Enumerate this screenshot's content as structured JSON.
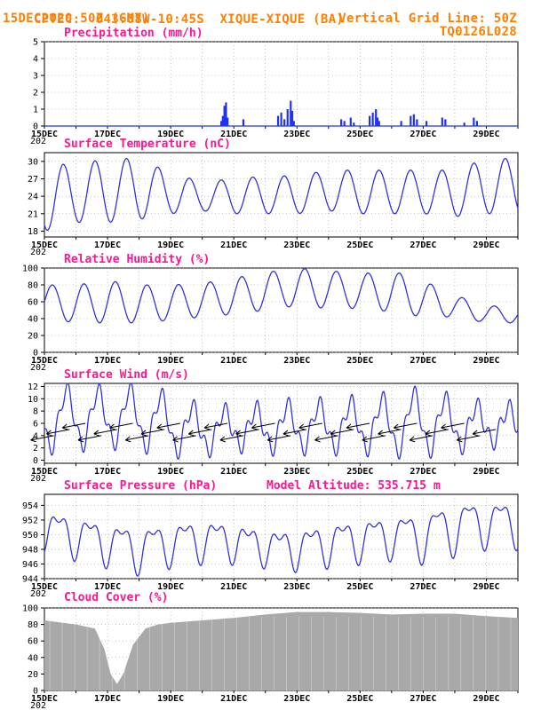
{
  "header": {
    "agency": "CPTEC:",
    "coords": "043:08W-10:45S",
    "station": "XIQUE-XIQUE (BA)",
    "date": "15DEC2020 50Z (GMT)",
    "grid_note": "Vertical Grid Line: 50Z",
    "code": "TQ0126L028"
  },
  "x_ticks": [
    "15DEC",
    "17DEC",
    "19DEC",
    "21DEC",
    "23DEC",
    "25DEC",
    "27DEC",
    "29DEC"
  ],
  "x_year_fragment": "202",
  "colors": {
    "header": "#ff8000",
    "title": "#ff1493",
    "line": "#3333dd",
    "bar": "#2233ee",
    "cloud": "#a9a9a9"
  },
  "chart_data": [
    {
      "type": "bar",
      "title": "Precipitation (mm/h)",
      "ylim": [
        0,
        5
      ],
      "yticks": [
        0,
        1,
        2,
        3,
        4,
        5
      ],
      "x_unit": "days since 15DEC 00Z",
      "values": [
        {
          "x": 5.6,
          "y": 0.3
        },
        {
          "x": 5.65,
          "y": 0.6
        },
        {
          "x": 5.7,
          "y": 1.2
        },
        {
          "x": 5.75,
          "y": 1.4
        },
        {
          "x": 5.8,
          "y": 0.5
        },
        {
          "x": 6.3,
          "y": 0.4
        },
        {
          "x": 7.4,
          "y": 0.6
        },
        {
          "x": 7.5,
          "y": 0.8
        },
        {
          "x": 7.6,
          "y": 0.4
        },
        {
          "x": 7.7,
          "y": 1.0
        },
        {
          "x": 7.8,
          "y": 1.5
        },
        {
          "x": 7.85,
          "y": 0.9
        },
        {
          "x": 7.9,
          "y": 0.3
        },
        {
          "x": 9.4,
          "y": 0.4
        },
        {
          "x": 9.5,
          "y": 0.3
        },
        {
          "x": 9.7,
          "y": 0.5
        },
        {
          "x": 9.8,
          "y": 0.2
        },
        {
          "x": 10.3,
          "y": 0.6
        },
        {
          "x": 10.4,
          "y": 0.8
        },
        {
          "x": 10.5,
          "y": 1.0
        },
        {
          "x": 10.55,
          "y": 0.5
        },
        {
          "x": 10.6,
          "y": 0.3
        },
        {
          "x": 11.3,
          "y": 0.3
        },
        {
          "x": 11.6,
          "y": 0.6
        },
        {
          "x": 11.7,
          "y": 0.7
        },
        {
          "x": 11.8,
          "y": 0.4
        },
        {
          "x": 12.1,
          "y": 0.3
        },
        {
          "x": 12.6,
          "y": 0.5
        },
        {
          "x": 12.7,
          "y": 0.4
        },
        {
          "x": 13.3,
          "y": 0.2
        },
        {
          "x": 13.6,
          "y": 0.5
        },
        {
          "x": 13.7,
          "y": 0.3
        }
      ]
    },
    {
      "type": "line",
      "title": "Surface Temperature (nC)",
      "ylim": [
        17,
        31.5
      ],
      "yticks": [
        18,
        21,
        24,
        27,
        30
      ],
      "daily_max": [
        29.5,
        29.5,
        30.5,
        30.5,
        28,
        26.5,
        27,
        27.5,
        27.5,
        28.5,
        28.5,
        28.5,
        28.5,
        28.5,
        30.5
      ],
      "daily_min": [
        18,
        19.5,
        19.5,
        20,
        21,
        21.5,
        21,
        21,
        21,
        21.5,
        21,
        21,
        21,
        20.5,
        21
      ]
    },
    {
      "type": "line",
      "title": "Relative Humidity (%)",
      "ylim": [
        0,
        100
      ],
      "yticks": [
        0,
        20,
        40,
        60,
        80,
        100
      ],
      "daily_max": [
        80,
        80,
        85,
        80,
        80,
        82,
        88,
        95,
        100,
        97,
        93,
        97,
        85,
        68,
        55
      ],
      "daily_min": [
        40,
        35,
        35,
        35,
        38,
        42,
        45,
        50,
        55,
        52,
        52,
        48,
        42,
        42,
        35
      ]
    },
    {
      "type": "line",
      "title": "Surface Wind (m/s)",
      "ylim": [
        -0.5,
        12.5
      ],
      "yticks": [
        0,
        2,
        4,
        6,
        8,
        10,
        12
      ],
      "daily_max": [
        11,
        11.5,
        11,
        11.5,
        10,
        8,
        8,
        8.5,
        9,
        9,
        9.5,
        10,
        11,
        9.5,
        8.5
      ],
      "daily_min": [
        2,
        2.5,
        3,
        2.5,
        1.5,
        1.5,
        2.5,
        2,
        2,
        2,
        2,
        1.5,
        1.5,
        2,
        3
      ],
      "arrows_note": "wind barbs pointing west-southwest"
    },
    {
      "type": "line",
      "title": "Surface Pressure (hPa)",
      "annotation": "Model Altitude: 535.715 m",
      "ylim": [
        944,
        955.5
      ],
      "yticks": [
        944,
        946,
        948,
        950,
        952,
        954
      ],
      "daily_max": [
        953.2,
        952.5,
        951.5,
        951,
        951.5,
        952,
        951.5,
        950.5,
        950.5,
        951.5,
        952,
        952.5,
        953,
        954.5,
        954.5
      ],
      "daily_min": [
        948.5,
        947.5,
        946.5,
        945.5,
        946.5,
        947,
        947,
        946.5,
        946,
        946.5,
        947,
        947.5,
        947,
        948,
        949
      ]
    },
    {
      "type": "area",
      "title": "Cloud Cover (%)",
      "ylim": [
        0,
        100
      ],
      "yticks": [
        0,
        20,
        40,
        60,
        80,
        100
      ],
      "profile": [
        {
          "x": 0,
          "y": 85
        },
        {
          "x": 1,
          "y": 80
        },
        {
          "x": 1.6,
          "y": 75
        },
        {
          "x": 1.9,
          "y": 50
        },
        {
          "x": 2.1,
          "y": 20
        },
        {
          "x": 2.3,
          "y": 8
        },
        {
          "x": 2.5,
          "y": 20
        },
        {
          "x": 2.8,
          "y": 55
        },
        {
          "x": 3.2,
          "y": 75
        },
        {
          "x": 3.6,
          "y": 80
        },
        {
          "x": 4,
          "y": 82
        },
        {
          "x": 5,
          "y": 85
        },
        {
          "x": 6,
          "y": 88
        },
        {
          "x": 7,
          "y": 92
        },
        {
          "x": 8,
          "y": 95
        },
        {
          "x": 9,
          "y": 95
        },
        {
          "x": 10,
          "y": 94
        },
        {
          "x": 11,
          "y": 92
        },
        {
          "x": 12,
          "y": 93
        },
        {
          "x": 13,
          "y": 93
        },
        {
          "x": 14,
          "y": 90
        },
        {
          "x": 15,
          "y": 88
        }
      ]
    }
  ]
}
